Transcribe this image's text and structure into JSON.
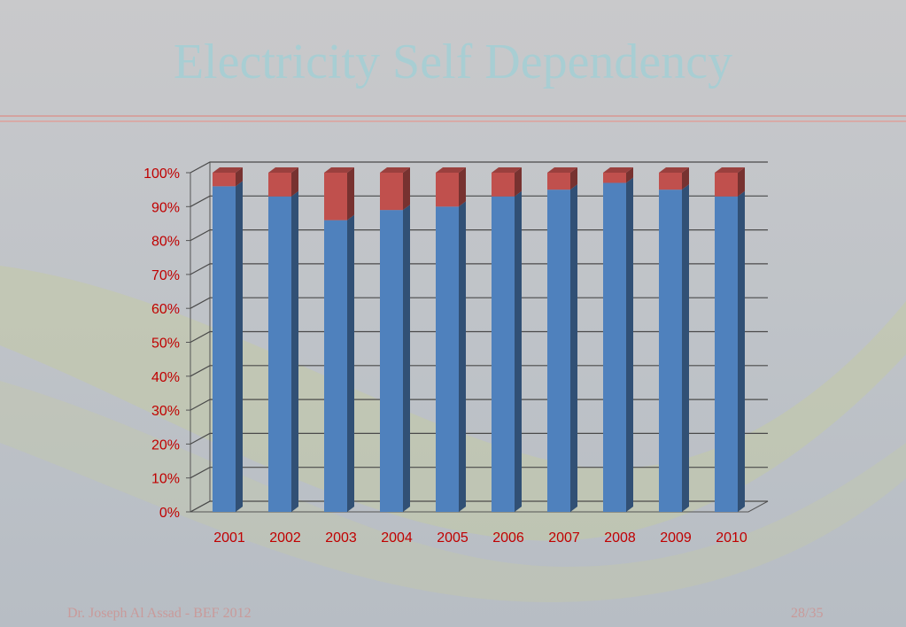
{
  "slide": {
    "title": "Electricity Self Dependency",
    "footer_author": "Dr. Joseph Al Assad - BEF 2012",
    "footer_page": "28/35"
  },
  "colors": {
    "title": "#9ed0d6",
    "series_1": "#4f81bd",
    "series_2": "#c0504d",
    "tick_label": "#c00000",
    "footer": "#c99a9a"
  },
  "chart_data": {
    "type": "bar",
    "stacked": true,
    "percent_stacked": true,
    "three_d": true,
    "categories": [
      "2001",
      "2002",
      "2003",
      "2004",
      "2005",
      "2006",
      "2007",
      "2008",
      "2009",
      "2010"
    ],
    "series": [
      {
        "values": [
          96,
          93,
          86,
          89,
          90,
          93,
          95,
          97,
          95,
          93
        ]
      },
      {
        "values": [
          4,
          7,
          14,
          11,
          10,
          7,
          5,
          3,
          5,
          7
        ]
      }
    ],
    "y_ticks": [
      "0%",
      "10%",
      "20%",
      "30%",
      "40%",
      "50%",
      "60%",
      "70%",
      "80%",
      "90%",
      "100%"
    ],
    "ylim": [
      0,
      100
    ],
    "grid": true,
    "legend": "none"
  }
}
